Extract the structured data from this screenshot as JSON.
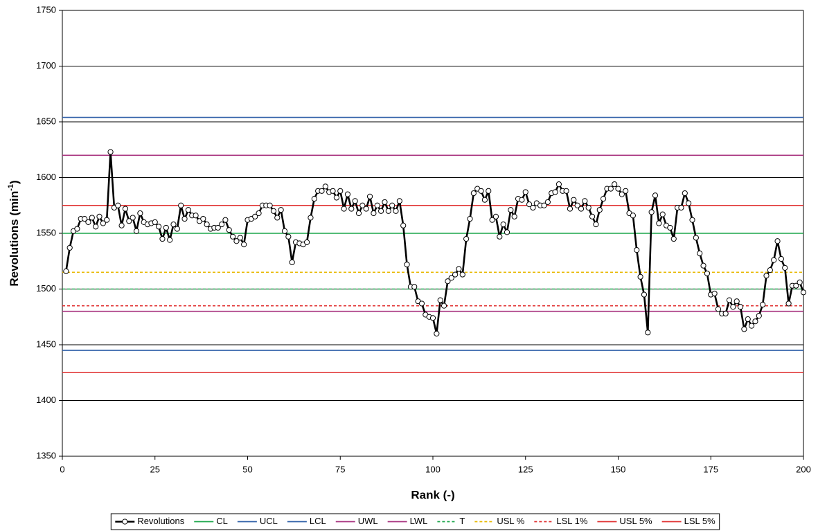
{
  "chart_data": {
    "type": "line",
    "x_label": "Rank (-)",
    "y_label": "Revolutions (min",
    "y_label_sup": "-1",
    "y_label_end": ")",
    "xlim": [
      0,
      200
    ],
    "xticks": [
      0,
      25,
      50,
      75,
      100,
      125,
      150,
      175,
      200
    ],
    "ylim": [
      1350,
      1750
    ],
    "yticks": [
      1350,
      1400,
      1450,
      1500,
      1550,
      1600,
      1650,
      1700,
      1750
    ],
    "grid": true,
    "legend": "bottom",
    "x": [
      1,
      2,
      3,
      4,
      5,
      6,
      7,
      8,
      9,
      10,
      11,
      12,
      13,
      14,
      15,
      16,
      17,
      18,
      19,
      20,
      21,
      22,
      23,
      24,
      25,
      26,
      27,
      28,
      29,
      30,
      31,
      32,
      33,
      34,
      35,
      36,
      37,
      38,
      39,
      40,
      41,
      42,
      43,
      44,
      45,
      46,
      47,
      48,
      49,
      50,
      51,
      52,
      53,
      54,
      55,
      56,
      57,
      58,
      59,
      60,
      61,
      62,
      63,
      64,
      65,
      66,
      67,
      68,
      69,
      70,
      71,
      72,
      73,
      74,
      75,
      76,
      77,
      78,
      79,
      80,
      81,
      82,
      83,
      84,
      85,
      86,
      87,
      88,
      89,
      90,
      91,
      92,
      93,
      94,
      95,
      96,
      97,
      98,
      99,
      100,
      101,
      102,
      103,
      104,
      105,
      106,
      107,
      108,
      109,
      110,
      111,
      112,
      113,
      114,
      115,
      116,
      117,
      118,
      119,
      120,
      121,
      122,
      123,
      124,
      125,
      126,
      127,
      128,
      129,
      130,
      131,
      132,
      133,
      134,
      135,
      136,
      137,
      138,
      139,
      140,
      141,
      142,
      143,
      144,
      145,
      146,
      147,
      148,
      149,
      150,
      151,
      152,
      153,
      154,
      155,
      156,
      157,
      158,
      159,
      160,
      161,
      162,
      163,
      164,
      165,
      166,
      167,
      168,
      169,
      170,
      171,
      172,
      173,
      174,
      175,
      176,
      177,
      178,
      179,
      180,
      181,
      182,
      183,
      184,
      185,
      186,
      187,
      188,
      189,
      190,
      191,
      192,
      193,
      194,
      195,
      196,
      197,
      198,
      199,
      200
    ],
    "series": [
      {
        "name": "Revolutions",
        "color": "#000000",
        "values": [
          1516,
          1537,
          1552,
          1554,
          1563,
          1563,
          1560,
          1564,
          1556,
          1565,
          1559,
          1562,
          1623,
          1573,
          1575,
          1557,
          1572,
          1561,
          1564,
          1552,
          1568,
          1560,
          1558,
          1559,
          1560,
          1556,
          1545,
          1555,
          1544,
          1558,
          1554,
          1575,
          1563,
          1571,
          1566,
          1566,
          1561,
          1563,
          1558,
          1554,
          1555,
          1555,
          1558,
          1562,
          1553,
          1547,
          1543,
          1546,
          1540,
          1562,
          1563,
          1565,
          1568,
          1575,
          1575,
          1575,
          1570,
          1564,
          1571,
          1552,
          1547,
          1524,
          1542,
          1541,
          1540,
          1542,
          1564,
          1581,
          1588,
          1588,
          1592,
          1587,
          1588,
          1582,
          1588,
          1572,
          1585,
          1572,
          1579,
          1568,
          1575,
          1572,
          1583,
          1568,
          1575,
          1570,
          1578,
          1570,
          1575,
          1570,
          1579,
          1557,
          1522,
          1502,
          1502,
          1489,
          1487,
          1477,
          1475,
          1474,
          1460,
          1490,
          1485,
          1507,
          1510,
          1513,
          1518,
          1513,
          1545,
          1563,
          1586,
          1590,
          1588,
          1580,
          1588,
          1562,
          1565,
          1547,
          1558,
          1551,
          1571,
          1565,
          1581,
          1580,
          1587,
          1576,
          1573,
          1577,
          1575,
          1575,
          1578,
          1586,
          1587,
          1594,
          1588,
          1588,
          1572,
          1580,
          1575,
          1572,
          1579,
          1573,
          1565,
          1558,
          1571,
          1581,
          1590,
          1590,
          1594,
          1590,
          1585,
          1588,
          1568,
          1566,
          1535,
          1511,
          1495,
          1461,
          1569,
          1584,
          1559,
          1567,
          1557,
          1555,
          1545,
          1573,
          1573,
          1586,
          1577,
          1562,
          1546,
          1532,
          1521,
          1514,
          1495,
          1496,
          1482,
          1478,
          1478,
          1490,
          1484,
          1489,
          1484,
          1464,
          1473,
          1467,
          1471,
          1476,
          1486,
          1512,
          1517,
          1526,
          1543,
          1527,
          1519,
          1487,
          1503,
          1503,
          1506,
          1497
        ]
      }
    ],
    "lines": [
      {
        "name": "CL",
        "color": "#1aa64a",
        "value": 1550,
        "dashed": false
      },
      {
        "name": "UCL",
        "color": "#2f5fa8",
        "value": 1654,
        "dashed": false
      },
      {
        "name": "LCL",
        "color": "#2f5fa8",
        "value": 1445,
        "dashed": false
      },
      {
        "name": "UWL",
        "color": "#a8337f",
        "value": 1620,
        "dashed": false
      },
      {
        "name": "LWL",
        "color": "#a8337f",
        "value": 1480,
        "dashed": false
      },
      {
        "name": "T",
        "color": "#1aa64a",
        "value": 1500,
        "dashed": true
      },
      {
        "name": "USL %",
        "color": "#e8b800",
        "value": 1515,
        "dashed": true
      },
      {
        "name": "LSL 1%",
        "color": "#e03030",
        "value": 1485,
        "dashed": true
      },
      {
        "name": "USL 5%",
        "color": "#e03030",
        "value": 1575,
        "dashed": false
      },
      {
        "name": "LSL 5%",
        "color": "#e03030",
        "value": 1425,
        "dashed": false
      }
    ]
  }
}
